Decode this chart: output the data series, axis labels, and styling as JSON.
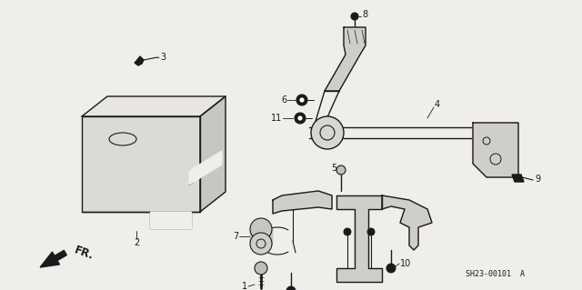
{
  "bg_color": "#f0eeea",
  "line_color": "#1a1a1a",
  "diagram_code": "SH23-00101  A",
  "fr_label": "FR.",
  "figsize": [
    6.4,
    3.19
  ],
  "dpi": 100
}
